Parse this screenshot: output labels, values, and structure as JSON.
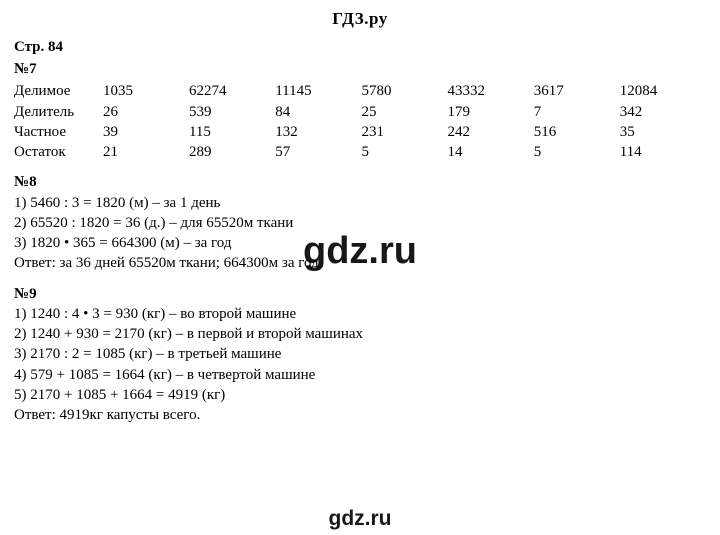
{
  "site": {
    "title": "ГДЗ.ру"
  },
  "watermark": {
    "mid": "gdz.ru",
    "bottom": "gdz.ru"
  },
  "page": {
    "ref": "Стр. 84"
  },
  "problem7": {
    "num": "№7",
    "rows": {
      "dividend": {
        "label": "Делимое",
        "v": [
          "1035",
          "62274",
          "11145",
          "5780",
          "43332",
          "3617",
          "12084"
        ]
      },
      "divisor": {
        "label": "Делитель",
        "v": [
          "26",
          "539",
          "84",
          "25",
          "179",
          "7",
          "342"
        ]
      },
      "quotient": {
        "label": "Частное",
        "v": [
          "39",
          "115",
          "132",
          "231",
          "242",
          "516",
          "35"
        ]
      },
      "remainder": {
        "label": "Остаток",
        "v": [
          "21",
          "289",
          "57",
          "5",
          "14",
          "5",
          "114"
        ]
      }
    }
  },
  "problem8": {
    "num": "№8",
    "lines": [
      "1) 5460 : 3 = 1820 (м) – за 1 день",
      "2) 65520 : 1820 = 36 (д.) – для 65520м ткани",
      "3) 1820 • 365 = 664300 (м) – за год",
      "Ответ: за 36 дней 65520м ткани; 664300м за год."
    ]
  },
  "problem9": {
    "num": "№9",
    "lines": [
      "1) 1240 : 4 • 3 = 930 (кг) – во второй машине",
      "2) 1240 + 930 = 2170 (кг) – в первой и второй машинах",
      "3) 2170 : 2 = 1085 (кг) – в третьей машине",
      "4) 579 + 1085 = 1664 (кг) – в четвертой машине",
      "5) 2170 + 1085 + 1664 = 4919 (кг)",
      "Ответ: 4919кг капусты всего."
    ]
  }
}
